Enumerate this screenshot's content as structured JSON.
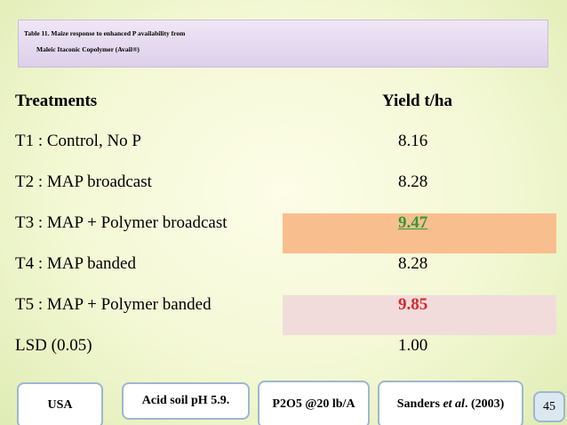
{
  "header": {
    "title_line1": "Table 11. Maize response to enhanced P availability from",
    "title_line2": "Maleic Itaconic Copolymer (Avail®)"
  },
  "table": {
    "columns": [
      "Treatments",
      "Yield t/ha"
    ],
    "rows": [
      [
        "T1 : Control, No P",
        "8.16"
      ],
      [
        "T2 : MAP broadcast",
        "8.28"
      ],
      [
        "T3 : MAP + Polymer broadcast",
        "9.47"
      ],
      [
        "T4 : MAP banded",
        "8.28"
      ],
      [
        "T5 : MAP + Polymer banded",
        "9.85"
      ],
      [
        "LSD (0.05)",
        "1.00"
      ]
    ]
  },
  "footer": {
    "location": "USA",
    "soil": "Acid soil pH 5.9.",
    "rate": "P2O5 @20 lb/A",
    "reference": {
      "before": "Sanders ",
      "italic": "et al",
      "after": ". (2003)"
    },
    "page": "45"
  }
}
